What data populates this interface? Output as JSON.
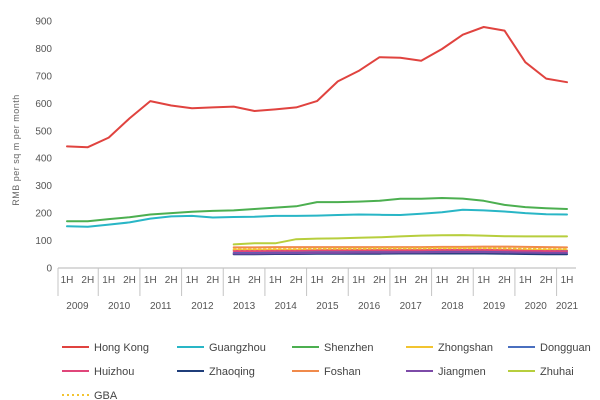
{
  "chart_data": {
    "type": "line",
    "ylabel": "RMB per sq m per month",
    "ylim": [
      0,
      900
    ],
    "yticks": [
      0,
      100,
      200,
      300,
      400,
      500,
      600,
      700,
      800,
      900
    ],
    "grid": false,
    "legend_position": "bottom",
    "x_half_labels": [
      "1H",
      "2H",
      "1H",
      "2H",
      "1H",
      "2H",
      "1H",
      "2H",
      "1H",
      "2H",
      "1H",
      "2H",
      "1H",
      "2H",
      "1H",
      "2H",
      "1H",
      "2H",
      "1H",
      "2H",
      "1H",
      "2H",
      "1H",
      "2H",
      "1H"
    ],
    "x_year_labels": [
      {
        "label": "2009",
        "index": 0.5
      },
      {
        "label": "2010",
        "index": 2.5
      },
      {
        "label": "2011",
        "index": 4.5
      },
      {
        "label": "2012",
        "index": 6.5
      },
      {
        "label": "2013",
        "index": 8.5
      },
      {
        "label": "2014",
        "index": 10.5
      },
      {
        "label": "2015",
        "index": 12.5
      },
      {
        "label": "2016",
        "index": 14.5
      },
      {
        "label": "2017",
        "index": 16.5
      },
      {
        "label": "2018",
        "index": 18.5
      },
      {
        "label": "2019",
        "index": 20.5
      },
      {
        "label": "2020",
        "index": 22.5
      },
      {
        "label": "2021",
        "index": 24
      }
    ],
    "series": [
      {
        "name": "Hong Kong",
        "color": "#e0433f",
        "dash": false,
        "start": 0,
        "values": [
          443,
          440,
          475,
          545,
          608,
          592,
          582,
          585,
          588,
          572,
          578,
          585,
          608,
          680,
          718,
          768,
          766,
          755,
          798,
          850,
          878,
          865,
          750,
          690,
          677
        ]
      },
      {
        "name": "Guangzhou",
        "color": "#29b6c6",
        "dash": false,
        "start": 0,
        "values": [
          152,
          150,
          158,
          166,
          180,
          188,
          190,
          184,
          186,
          187,
          190,
          190,
          191,
          193,
          195,
          194,
          193,
          198,
          203,
          212,
          210,
          206,
          200,
          196,
          195
        ]
      },
      {
        "name": "Shenzhen",
        "color": "#4caf50",
        "dash": false,
        "start": 0,
        "values": [
          170,
          170,
          178,
          185,
          195,
          200,
          205,
          208,
          210,
          215,
          220,
          225,
          240,
          240,
          242,
          245,
          252,
          252,
          255,
          253,
          245,
          230,
          222,
          218,
          215
        ]
      },
      {
        "name": "Zhongshan",
        "color": "#f2c430",
        "dash": false,
        "start": 8,
        "values": [
          65,
          65,
          65,
          65,
          65,
          66,
          66,
          66,
          66,
          66,
          67,
          67,
          67,
          66,
          65,
          65,
          64
        ]
      },
      {
        "name": "Dongguan",
        "color": "#4a6fbf",
        "dash": false,
        "start": 8,
        "values": [
          55,
          56,
          57,
          58,
          59,
          60,
          60,
          60,
          61,
          61,
          62,
          62,
          63,
          63,
          62,
          62,
          62
        ]
      },
      {
        "name": "Huizhou",
        "color": "#e0467a",
        "dash": false,
        "start": 8,
        "values": [
          62,
          62,
          63,
          63,
          64,
          64,
          65,
          65,
          65,
          65,
          66,
          66,
          66,
          65,
          63,
          62,
          61
        ]
      },
      {
        "name": "Zhaoqing",
        "color": "#1f3e7a",
        "dash": false,
        "start": 8,
        "values": [
          50,
          50,
          51,
          51,
          52,
          52,
          52,
          52,
          53,
          53,
          53,
          53,
          53,
          52,
          51,
          50,
          50
        ]
      },
      {
        "name": "Foshan",
        "color": "#f08a4b",
        "dash": false,
        "start": 8,
        "values": [
          75,
          75,
          76,
          76,
          76,
          76,
          76,
          76,
          76,
          76,
          77,
          77,
          78,
          78,
          77,
          76,
          75
        ]
      },
      {
        "name": "Jiangmen",
        "color": "#7d4ba8",
        "dash": false,
        "start": 8,
        "values": [
          53,
          53,
          54,
          54,
          55,
          55,
          56,
          56,
          57,
          57,
          58,
          58,
          58,
          57,
          56,
          55,
          55
        ]
      },
      {
        "name": "Zhuhai",
        "color": "#b7ce3d",
        "dash": false,
        "start": 8,
        "values": [
          86,
          90,
          90,
          105,
          107,
          108,
          110,
          112,
          115,
          118,
          119,
          120,
          118,
          116,
          115,
          115,
          115
        ]
      },
      {
        "name": "GBA",
        "color": "#f2c430",
        "dash": true,
        "start": 8,
        "values": [
          68,
          68,
          69,
          69,
          70,
          70,
          70,
          71,
          71,
          71,
          72,
          72,
          72,
          71,
          70,
          69,
          69
        ]
      }
    ]
  }
}
